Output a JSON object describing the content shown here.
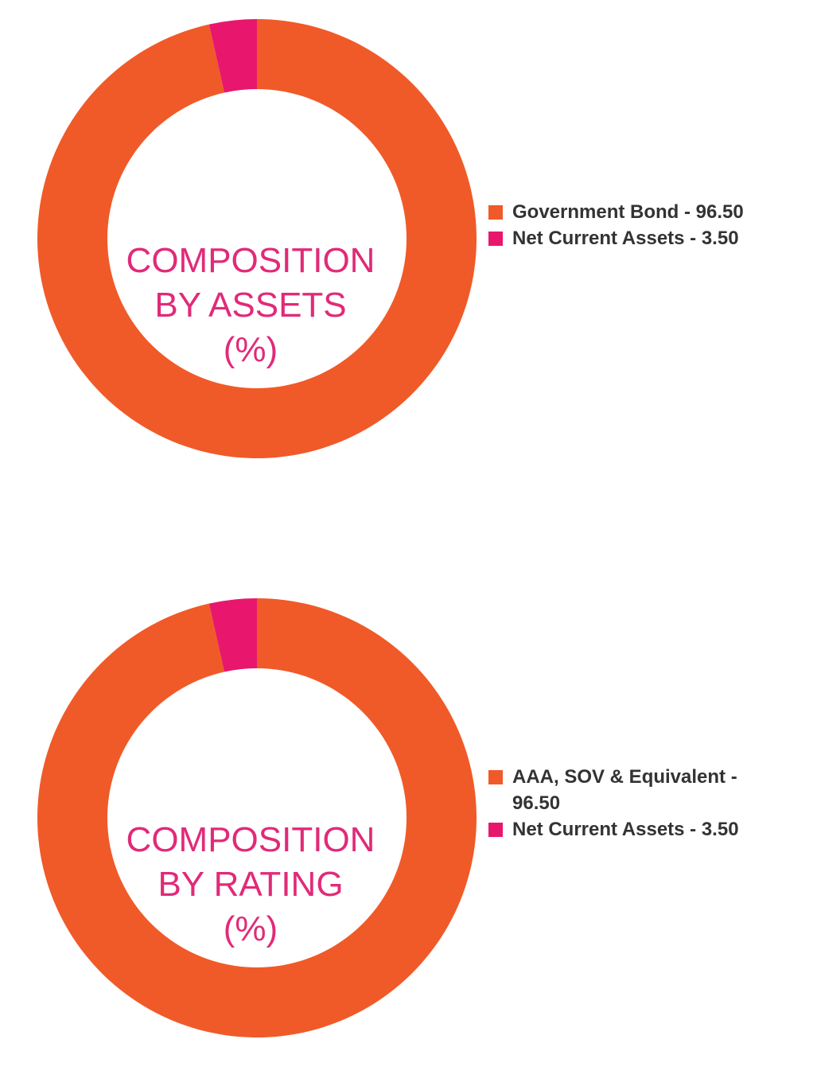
{
  "colors": {
    "orange": "#f05a28",
    "pink": "#e8176d",
    "title": "#e12a78",
    "legend_text": "#333333"
  },
  "chart_data": [
    {
      "type": "pie",
      "style": "donut",
      "title_lines": [
        "COMPOSITION",
        "BY ASSETS",
        "(%)"
      ],
      "slices": [
        {
          "label": "Government Bond - 96.50",
          "name": "Government Bond",
          "value": 96.5,
          "color": "#f05a28"
        },
        {
          "label": "Net Current Assets - 3.50",
          "name": "Net Current Assets",
          "value": 3.5,
          "color": "#e8176d"
        }
      ],
      "legend_position": "right"
    },
    {
      "type": "pie",
      "style": "donut",
      "title_lines": [
        "COMPOSITION",
        "BY RATING",
        "(%)"
      ],
      "slices": [
        {
          "label": "AAA, SOV & Equivalent - 96.50",
          "name": "AAA, SOV & Equivalent",
          "value": 96.5,
          "color": "#f05a28"
        },
        {
          "label": "Net Current Assets - 3.50",
          "name": "Net Current Assets",
          "value": 3.5,
          "color": "#e8176d"
        }
      ],
      "legend_position": "right"
    }
  ]
}
